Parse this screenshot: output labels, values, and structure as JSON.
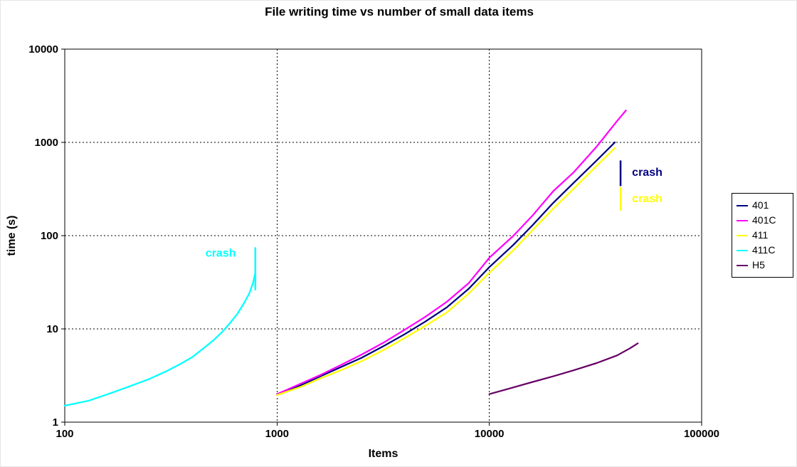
{
  "chart_data": {
    "type": "line",
    "title": "File writing time vs number of small data items",
    "xlabel": "Items",
    "ylabel": "time (s)",
    "x_scale": "log",
    "y_scale": "log",
    "xlim": [
      100,
      100000
    ],
    "ylim": [
      1,
      10000
    ],
    "x_ticks": [
      100,
      1000,
      10000,
      100000
    ],
    "y_ticks": [
      1,
      10,
      100,
      1000,
      10000
    ],
    "grid": "dotted",
    "legend_position": "right-outside",
    "series": [
      {
        "name": "401",
        "color": "#000080",
        "points": [
          [
            1000,
            2
          ],
          [
            1300,
            2.5
          ],
          [
            1600,
            3.1
          ],
          [
            2000,
            3.9
          ],
          [
            2500,
            4.9
          ],
          [
            3200,
            6.6
          ],
          [
            4000,
            8.8
          ],
          [
            5000,
            12
          ],
          [
            6300,
            17
          ],
          [
            8000,
            27
          ],
          [
            10000,
            46
          ],
          [
            13000,
            80
          ],
          [
            16000,
            130
          ],
          [
            20000,
            225
          ],
          [
            25000,
            370
          ],
          [
            32000,
            640
          ],
          [
            39000,
            1000
          ]
        ]
      },
      {
        "name": "401C",
        "color": "#FF00FF",
        "points": [
          [
            1000,
            2
          ],
          [
            1300,
            2.6
          ],
          [
            1600,
            3.2
          ],
          [
            2000,
            4.1
          ],
          [
            2500,
            5.3
          ],
          [
            3200,
            7.2
          ],
          [
            4000,
            9.8
          ],
          [
            5000,
            13.5
          ],
          [
            6300,
            19.5
          ],
          [
            8000,
            31
          ],
          [
            10000,
            58
          ],
          [
            13000,
            100
          ],
          [
            16000,
            165
          ],
          [
            20000,
            300
          ],
          [
            25000,
            480
          ],
          [
            32000,
            900
          ],
          [
            40000,
            1700
          ],
          [
            44000,
            2200
          ]
        ]
      },
      {
        "name": "411",
        "color": "#FFFF00",
        "points": [
          [
            1000,
            1.95
          ],
          [
            1300,
            2.4
          ],
          [
            1600,
            2.95
          ],
          [
            2000,
            3.6
          ],
          [
            2500,
            4.5
          ],
          [
            3200,
            6.0
          ],
          [
            4000,
            8.0
          ],
          [
            5000,
            10.8
          ],
          [
            6300,
            15
          ],
          [
            8000,
            24
          ],
          [
            10000,
            40
          ],
          [
            13000,
            70
          ],
          [
            16000,
            115
          ],
          [
            20000,
            195
          ],
          [
            25000,
            320
          ],
          [
            32000,
            560
          ],
          [
            39000,
            870
          ]
        ]
      },
      {
        "name": "411C",
        "color": "#00FFFF",
        "points": [
          [
            100,
            1.5
          ],
          [
            130,
            1.7
          ],
          [
            160,
            2.0
          ],
          [
            200,
            2.4
          ],
          [
            250,
            2.9
          ],
          [
            300,
            3.5
          ],
          [
            350,
            4.2
          ],
          [
            400,
            5.0
          ],
          [
            450,
            6.2
          ],
          [
            500,
            7.5
          ],
          [
            550,
            9.2
          ],
          [
            600,
            11.5
          ],
          [
            650,
            14.5
          ],
          [
            700,
            19
          ],
          [
            740,
            24
          ],
          [
            770,
            31
          ],
          [
            790,
            40
          ]
        ]
      },
      {
        "name": "H5",
        "color": "#660066",
        "points": [
          [
            10000,
            2
          ],
          [
            12500,
            2.3
          ],
          [
            16000,
            2.7
          ],
          [
            20000,
            3.1
          ],
          [
            25000,
            3.6
          ],
          [
            32000,
            4.3
          ],
          [
            40000,
            5.2
          ],
          [
            46000,
            6.2
          ],
          [
            50000,
            7
          ]
        ]
      }
    ],
    "annotations": [
      {
        "text": "crash",
        "color": "#00FFFF",
        "label": {
          "x": 640,
          "y": 65,
          "anchor": "end"
        },
        "tick": {
          "x": 790,
          "y1": 26,
          "y2": 75
        }
      },
      {
        "text": "crash",
        "color": "#000080",
        "label": {
          "x": 47000,
          "y": 480,
          "anchor": "start"
        },
        "tick": {
          "x": 41500,
          "y1": 340,
          "y2": 640
        }
      },
      {
        "text": "crash",
        "color": "#FFFF00",
        "label": {
          "x": 47000,
          "y": 250,
          "anchor": "start"
        },
        "tick": {
          "x": 41500,
          "y1": 185,
          "y2": 330
        }
      }
    ]
  }
}
